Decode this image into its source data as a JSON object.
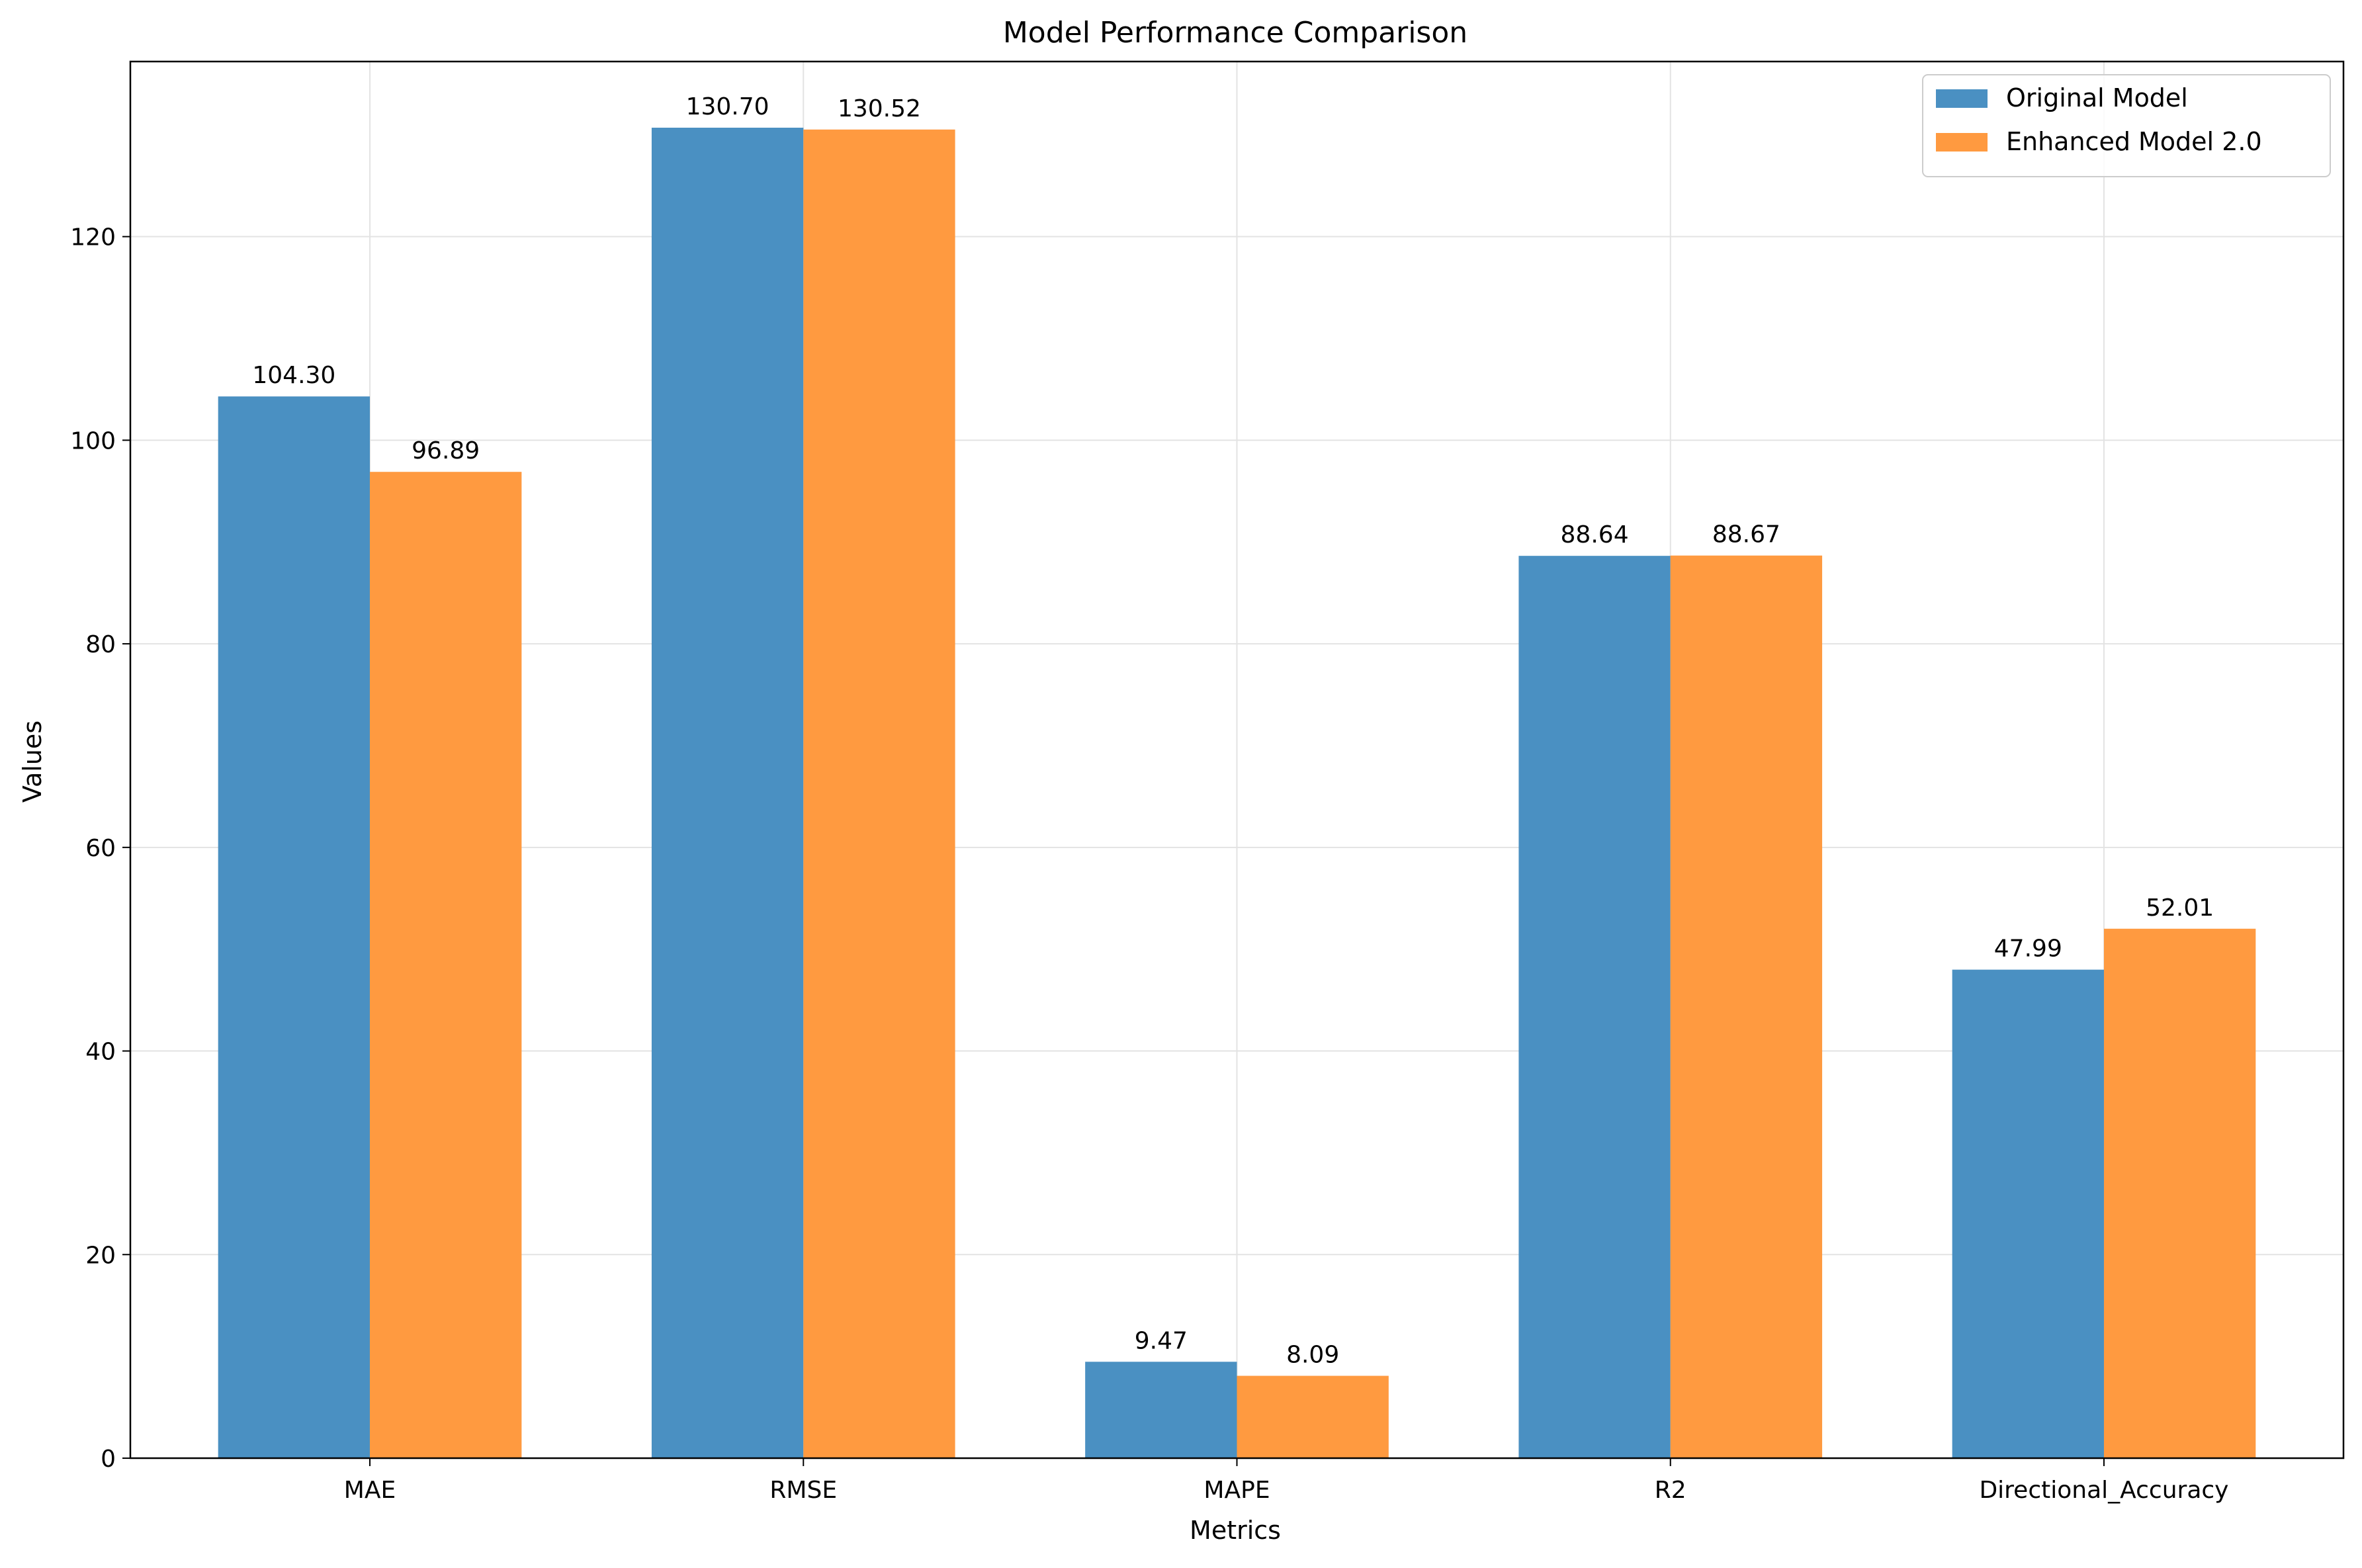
{
  "chart_data": {
    "type": "bar",
    "title": "Model Performance Comparison",
    "xlabel": "Metrics",
    "ylabel": "Values",
    "categories": [
      "MAE",
      "RMSE",
      "MAPE",
      "R2",
      "Directional_Accuracy"
    ],
    "series": [
      {
        "name": "Original Model",
        "color": "#4a90c2",
        "values": [
          104.3,
          130.7,
          9.47,
          88.64,
          47.99
        ],
        "labels": [
          "104.30",
          "130.70",
          "9.47",
          "88.64",
          "47.99"
        ]
      },
      {
        "name": "Enhanced Model 2.0",
        "color": "#ff9a40",
        "values": [
          96.89,
          130.52,
          8.09,
          88.67,
          52.01
        ],
        "labels": [
          "96.89",
          "130.52",
          "8.09",
          "88.67",
          "52.01"
        ]
      }
    ],
    "ylim": [
      0,
      137.2
    ],
    "yticks": [
      0,
      20,
      40,
      60,
      80,
      100,
      120
    ],
    "grid": true,
    "legend": "top-right"
  }
}
